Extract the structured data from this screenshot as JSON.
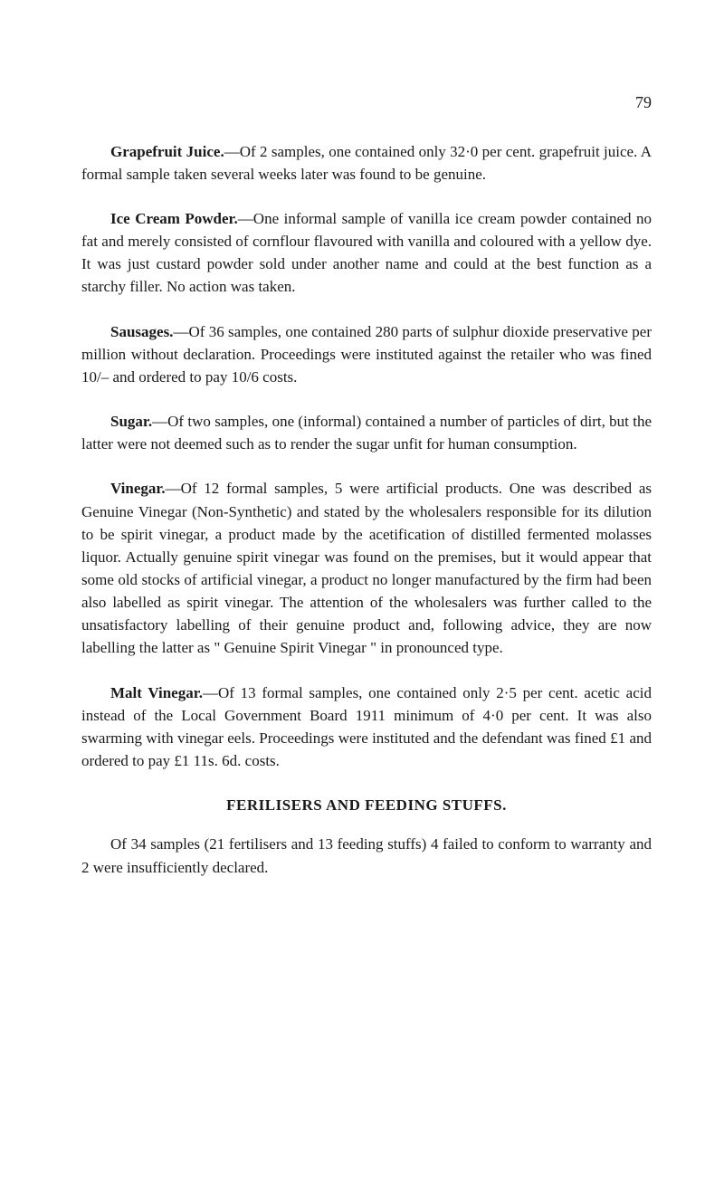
{
  "page_number": "79",
  "paragraphs": {
    "grapefruit": {
      "label": "Grapefruit Juice.",
      "text": "—Of 2 samples, one contained only 32·0 per cent. grapefruit juice. A formal sample taken several weeks later was found to be genuine."
    },
    "ice_cream": {
      "label": "Ice Cream Powder.",
      "text": "—One informal sample of vanilla ice cream powder contained no fat and merely consisted of cornflour flavoured with vanilla and coloured with a yellow dye. It was just custard powder sold under another name and could at the best function as a starchy filler. No action was taken."
    },
    "sausages": {
      "label": "Sausages.",
      "text": "—Of 36 samples, one contained 280 parts of sulphur dioxide preservative per million without declaration. Proceedings were instituted against the retailer who was fined 10/– and ordered to pay 10/6 costs."
    },
    "sugar": {
      "label": "Sugar.",
      "text": "—Of two samples, one (informal) contained a number of particles of dirt, but the latter were not deemed such as to render the sugar unfit for human consumption."
    },
    "vinegar": {
      "label": "Vinegar.",
      "text": "—Of 12 formal samples, 5 were artificial products. One was described as Genuine Vinegar (Non-Synthetic) and stated by the wholesalers responsible for its dilution to be spirit vinegar, a product made by the acetification of distilled fermented molasses liquor. Actually genuine spirit vinegar was found on the premises, but it would appear that some old stocks of artificial vinegar, a product no longer manufactured by the firm had been also labelled as spirit vinegar. The attention of the wholesalers was further called to the unsatisfactory labelling of their genuine product and, following advice, they are now labelling the latter as \" Genuine Spirit Vinegar \" in pronounced type."
    },
    "malt_vinegar": {
      "label": "Malt Vinegar.",
      "text": "—Of 13 formal samples, one contained only 2·5 per cent. acetic acid instead of the Local Government Board 1911 minimum of 4·0 per cent. It was also swarming with vinegar eels. Proceedings were instituted and the defendant was fined £1 and ordered to pay £1 11s. 6d. costs."
    },
    "fertilisers": {
      "text": "Of 34 samples (21 fertilisers and 13 feeding stuffs) 4 failed to conform to warranty and 2 were insufficiently declared."
    }
  },
  "heading": "FERILISERS AND FEEDING STUFFS.",
  "colors": {
    "background": "#ffffff",
    "text": "#1a1a1a"
  },
  "typography": {
    "body_fontsize": 17,
    "heading_fontsize": 17,
    "font_family": "Georgia, Times New Roman, serif"
  }
}
